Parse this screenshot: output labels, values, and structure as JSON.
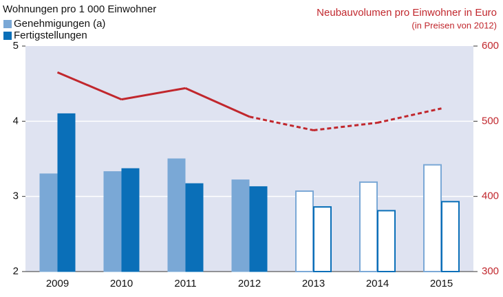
{
  "chart_data": {
    "type": "bar",
    "y_label": "Wohnungen pro 1 000 Einwohner",
    "y2_label": "Neubauvolumen pro Einwohner in Euro",
    "y2_sublabel": "(in Preisen von 2012)",
    "categories": [
      "2009",
      "2010",
      "2011",
      "2012",
      "2013",
      "2014",
      "2015"
    ],
    "forecast_start": "2013",
    "series": [
      {
        "name": "Genehmigungen (a)",
        "color": "#7aa8d6",
        "values": [
          3.3,
          3.33,
          3.5,
          3.22,
          3.07,
          3.19,
          3.42
        ]
      },
      {
        "name": "Fertigstellungen",
        "color": "#0a6fb8",
        "values": [
          4.1,
          3.37,
          3.17,
          3.13,
          2.86,
          2.81,
          2.93
        ]
      },
      {
        "type": "line",
        "axis": "y2",
        "color": "#c1272d",
        "values": [
          565,
          529,
          544,
          506,
          488,
          498,
          517
        ]
      }
    ],
    "ylim": [
      2,
      5
    ],
    "yticks": [
      2,
      3,
      4,
      5
    ],
    "y2lim": [
      300,
      600
    ],
    "y2ticks": [
      300,
      400,
      500,
      600
    ],
    "grid": true
  }
}
